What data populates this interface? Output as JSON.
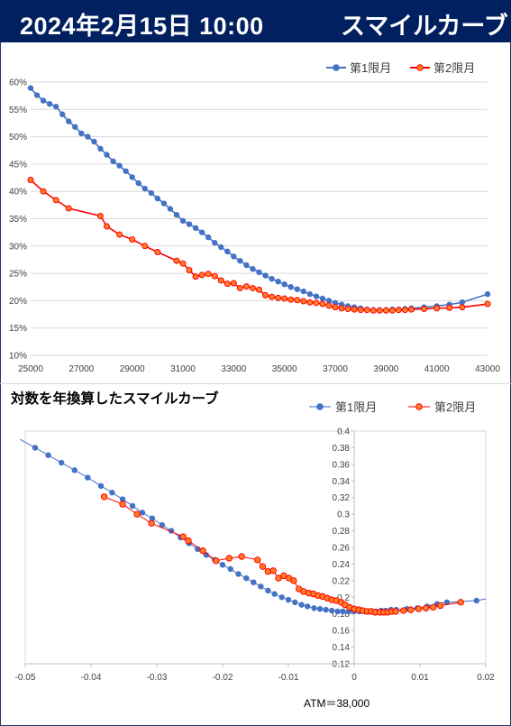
{
  "header": {
    "datetime": "2024年2月15日 10:00",
    "title": "スマイルカーブ"
  },
  "colors": {
    "header_bg": "#002060",
    "series1": "#4472c4",
    "series2": "#ff0000",
    "series2_fill": "#ff7f27"
  },
  "chart_data": [
    {
      "type": "line",
      "ylim": [
        0.1,
        0.6
      ],
      "xlim": [
        25000,
        43000
      ],
      "xticks": [
        "25000",
        "27000",
        "29000",
        "31000",
        "33000",
        "35000",
        "37000",
        "39000",
        "41000",
        "43000"
      ],
      "yticks": [
        "10%",
        "15%",
        "20%",
        "25%",
        "30%",
        "35%",
        "40%",
        "45%",
        "50%",
        "55%",
        "60%"
      ],
      "legend_position": "top-right",
      "series": [
        {
          "name": "第1限月",
          "x": [
            25000,
            25250,
            25500,
            25750,
            26000,
            26250,
            26500,
            26750,
            27000,
            27250,
            27500,
            27750,
            28000,
            28250,
            28500,
            28750,
            29000,
            29250,
            29500,
            29750,
            30000,
            30250,
            30500,
            30750,
            31000,
            31250,
            31500,
            31750,
            32000,
            32250,
            32500,
            32750,
            33000,
            33250,
            33500,
            33750,
            34000,
            34250,
            34500,
            34750,
            35000,
            35250,
            35500,
            35750,
            36000,
            36250,
            36500,
            36750,
            37000,
            37250,
            37500,
            37750,
            38000,
            38250,
            38500,
            38750,
            39000,
            39250,
            39500,
            39750,
            40000,
            40500,
            41000,
            41500,
            42000,
            43000
          ],
          "y": [
            0.589,
            0.576,
            0.566,
            0.56,
            0.555,
            0.541,
            0.528,
            0.518,
            0.506,
            0.5,
            0.491,
            0.478,
            0.467,
            0.455,
            0.447,
            0.437,
            0.426,
            0.415,
            0.405,
            0.397,
            0.387,
            0.378,
            0.368,
            0.357,
            0.346,
            0.34,
            0.333,
            0.325,
            0.316,
            0.306,
            0.298,
            0.29,
            0.281,
            0.273,
            0.265,
            0.258,
            0.252,
            0.246,
            0.24,
            0.235,
            0.23,
            0.225,
            0.221,
            0.217,
            0.212,
            0.208,
            0.204,
            0.2,
            0.196,
            0.193,
            0.19,
            0.188,
            0.186,
            0.184,
            0.183,
            0.183,
            0.183,
            0.184,
            0.184,
            0.185,
            0.186,
            0.188,
            0.19,
            0.193,
            0.197,
            0.212
          ]
        },
        {
          "name": "第2限月",
          "x": [
            25000,
            25500,
            26000,
            26500,
            27750,
            28000,
            28500,
            29000,
            29500,
            30000,
            30750,
            31000,
            31250,
            31500,
            31750,
            32000,
            32250,
            32500,
            32750,
            33000,
            33250,
            33500,
            33750,
            34000,
            34250,
            34500,
            34750,
            35000,
            35250,
            35500,
            35750,
            36000,
            36250,
            36500,
            36750,
            37000,
            37250,
            37500,
            37750,
            38000,
            38250,
            38500,
            38750,
            39000,
            39250,
            39500,
            39750,
            40000,
            40500,
            41000,
            41500,
            42000,
            43000
          ],
          "y": [
            0.421,
            0.4,
            0.384,
            0.369,
            0.355,
            0.336,
            0.321,
            0.312,
            0.3,
            0.289,
            0.273,
            0.268,
            0.256,
            0.244,
            0.247,
            0.249,
            0.245,
            0.237,
            0.231,
            0.232,
            0.223,
            0.226,
            0.223,
            0.22,
            0.21,
            0.207,
            0.205,
            0.204,
            0.202,
            0.201,
            0.199,
            0.197,
            0.196,
            0.194,
            0.191,
            0.188,
            0.186,
            0.185,
            0.184,
            0.183,
            0.183,
            0.182,
            0.182,
            0.182,
            0.182,
            0.183,
            0.183,
            0.184,
            0.185,
            0.186,
            0.187,
            0.188,
            0.194
          ]
        }
      ]
    },
    {
      "type": "scatter",
      "title": "対数を年換算したスマイルカーブ",
      "xlim": [
        -0.05,
        0.02
      ],
      "ylim": [
        0.12,
        0.4
      ],
      "xticks": [
        "-0.05",
        "-0.04",
        "-0.03",
        "-0.02",
        "-0.01",
        "0",
        "0.01",
        "0.02"
      ],
      "yticks": [
        "0.4",
        "0.38",
        "0.36",
        "0.34",
        "0.32",
        "0.3",
        "0.28",
        "0.26",
        "0.24",
        "0.22",
        "0.2",
        "0.18",
        "0.16",
        "0.14",
        "0.12"
      ],
      "annotation": "ATM＝38,000",
      "legend_position": "top-right",
      "series": [
        {
          "name": "第1限月",
          "x": [
            -0.0508,
            -0.0485,
            -0.0465,
            -0.0445,
            -0.0425,
            -0.0405,
            -0.0385,
            -0.0368,
            -0.0352,
            -0.0337,
            -0.0322,
            -0.0307,
            -0.0292,
            -0.0278,
            -0.0264,
            -0.0251,
            -0.0238,
            -0.0225,
            -0.0212,
            -0.02,
            -0.0188,
            -0.0176,
            -0.0164,
            -0.0153,
            -0.0142,
            -0.0131,
            -0.0121,
            -0.011,
            -0.01,
            -0.009,
            -0.008,
            -0.0071,
            -0.0061,
            -0.0052,
            -0.0043,
            -0.0034,
            -0.0025,
            -0.0017,
            -0.0008,
            0.0,
            0.0008,
            0.0016,
            0.0025,
            0.0033,
            0.0041,
            0.0048,
            0.0056,
            0.0064,
            0.008,
            0.0096,
            0.0111,
            0.0126,
            0.0141,
            0.0186
          ],
          "y": [
            0.39,
            0.38,
            0.371,
            0.362,
            0.353,
            0.344,
            0.334,
            0.326,
            0.318,
            0.31,
            0.302,
            0.295,
            0.287,
            0.28,
            0.272,
            0.265,
            0.258,
            0.251,
            0.245,
            0.239,
            0.234,
            0.228,
            0.223,
            0.218,
            0.213,
            0.208,
            0.204,
            0.2,
            0.197,
            0.194,
            0.191,
            0.189,
            0.187,
            0.186,
            0.185,
            0.184,
            0.183,
            0.183,
            0.183,
            0.183,
            0.183,
            0.183,
            0.183,
            0.183,
            0.184,
            0.184,
            0.185,
            0.185,
            0.186,
            0.187,
            0.189,
            0.192,
            0.194,
            0.196
          ]
        },
        {
          "name": "第2限月",
          "x": [
            -0.038,
            -0.0352,
            -0.033,
            -0.0308,
            -0.026,
            -0.0252,
            -0.023,
            -0.021,
            -0.019,
            -0.0171,
            -0.0147,
            -0.0139,
            -0.0131,
            -0.0123,
            -0.0115,
            -0.0107,
            -0.0099,
            -0.0092,
            -0.0084,
            -0.0077,
            -0.0069,
            -0.0062,
            -0.0055,
            -0.0048,
            -0.0041,
            -0.0034,
            -0.0027,
            -0.002,
            -0.0014,
            -0.0007,
            0.0,
            0.0007,
            0.0013,
            0.002,
            0.0026,
            0.0032,
            0.0039,
            0.0045,
            0.0051,
            0.0057,
            0.0063,
            0.0075,
            0.0086,
            0.0098,
            0.0109,
            0.012,
            0.0131,
            0.0162
          ],
          "y": [
            0.321,
            0.312,
            0.3,
            0.289,
            0.273,
            0.268,
            0.256,
            0.244,
            0.247,
            0.249,
            0.245,
            0.237,
            0.231,
            0.232,
            0.223,
            0.226,
            0.223,
            0.22,
            0.21,
            0.207,
            0.205,
            0.204,
            0.202,
            0.201,
            0.199,
            0.197,
            0.196,
            0.194,
            0.191,
            0.188,
            0.186,
            0.185,
            0.184,
            0.183,
            0.183,
            0.182,
            0.182,
            0.182,
            0.182,
            0.183,
            0.183,
            0.184,
            0.185,
            0.186,
            0.187,
            0.188,
            0.19,
            0.194
          ]
        }
      ]
    }
  ]
}
